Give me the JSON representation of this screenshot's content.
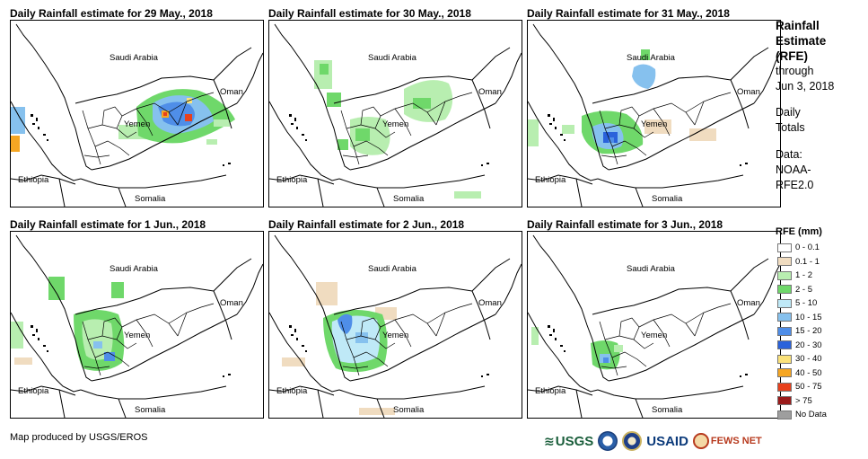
{
  "panels": [
    {
      "title": "Daily Rainfall estimate for 29 May., 2018",
      "rain": "d1"
    },
    {
      "title": "Daily Rainfall estimate for 30 May., 2018",
      "rain": "d2"
    },
    {
      "title": "Daily Rainfall estimate for 31 May., 2018",
      "rain": "d3"
    },
    {
      "title": "Daily Rainfall estimate for 1 Jun., 2018",
      "rain": "d4"
    },
    {
      "title": "Daily Rainfall estimate for 2 Jun., 2018",
      "rain": "d5"
    },
    {
      "title": "Daily Rainfall estimate for 3 Jun., 2018",
      "rain": "d6"
    }
  ],
  "map_labels": {
    "saudi_arabia": "Saudi Arabia",
    "oman": "Oman",
    "yemen": "Yemen",
    "ethiopia": "Ethiopia",
    "somalia": "Somalia"
  },
  "sidebar": {
    "title_line1": "Rainfall",
    "title_line2": "Estimate",
    "title_line3": "(RFE)",
    "through": "through",
    "date": "Jun 3, 2018",
    "daily": "Daily",
    "totals": "Totals",
    "data_label": "Data:",
    "data_line2": "NOAA-",
    "data_line3": "RFE2.0"
  },
  "legend": {
    "title": "RFE (mm)",
    "items": [
      {
        "label": "0 - 0.1",
        "color": "#ffffff"
      },
      {
        "label": "0.1 - 1",
        "color": "#f0dcc0"
      },
      {
        "label": "1 - 2",
        "color": "#b8eeb0"
      },
      {
        "label": "2 - 5",
        "color": "#6fd86a"
      },
      {
        "label": "5 - 10",
        "color": "#bfe9f7"
      },
      {
        "label": "10 - 15",
        "color": "#86c1ee"
      },
      {
        "label": "15 - 20",
        "color": "#4f8ee8"
      },
      {
        "label": "20 - 30",
        "color": "#2a62db"
      },
      {
        "label": "30 - 40",
        "color": "#fbe27a"
      },
      {
        "label": "40 - 50",
        "color": "#f5a623"
      },
      {
        "label": "50 - 75",
        "color": "#e8401c"
      },
      {
        "label": "> 75",
        "color": "#9b1b1b"
      },
      {
        "label": "No Data",
        "color": "#9e9e9e"
      }
    ]
  },
  "footer": {
    "credit": "Map produced by USGS/EROS",
    "usgs": "USGS",
    "usaid": "USAID",
    "fews": "FEWS NET"
  }
}
